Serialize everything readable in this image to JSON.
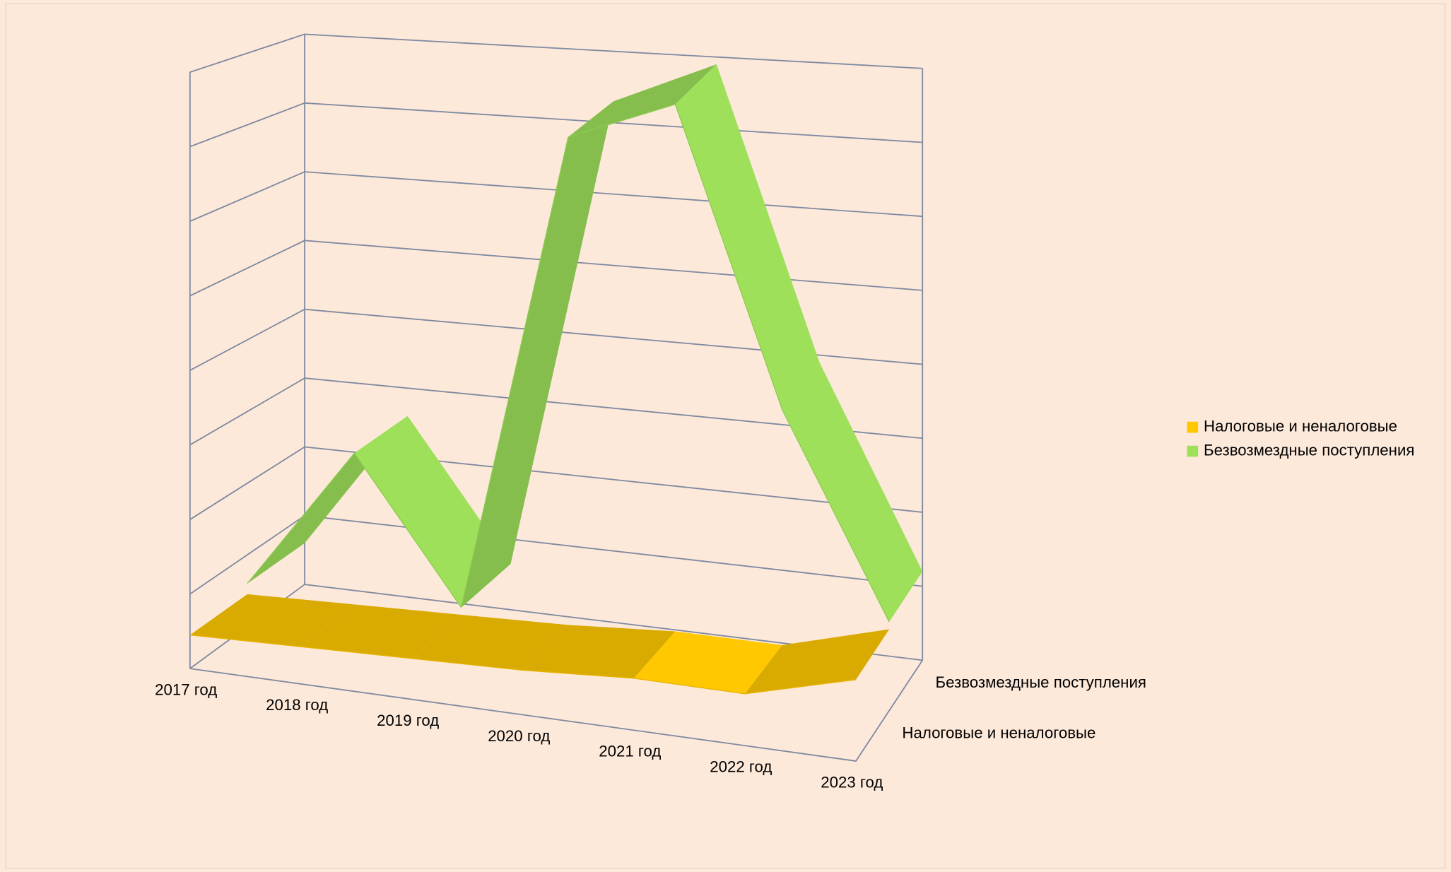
{
  "chart_data": {
    "type": "line3d",
    "categories": [
      "2017 год",
      "2018 год",
      "2019 год",
      "2020 год",
      "2021 год",
      "2022 год",
      "2023 год"
    ],
    "series": [
      {
        "name": "Налоговые и неналоговые",
        "color": "#ffc800",
        "values": [
          0.45,
          0.5,
          0.55,
          0.6,
          0.7,
          0.7,
          1.1
        ]
      },
      {
        "name": "Безвозмездные поступления",
        "color": "#9ee05a",
        "values": [
          0.6,
          2.6,
          0.65,
          7.3,
          7.9,
          3.9,
          1.2
        ]
      }
    ],
    "ylim": [
      0,
      8
    ],
    "yticks": [
      0,
      1,
      2,
      3,
      4,
      5,
      6,
      7,
      8
    ],
    "grid": true,
    "legend": "right"
  }
}
